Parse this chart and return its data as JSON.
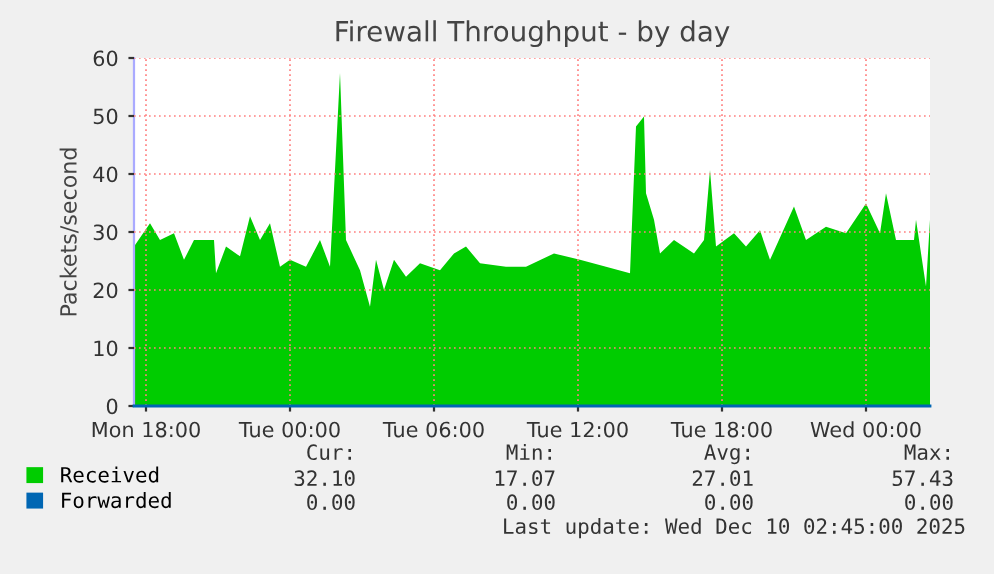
{
  "chart_data": {
    "type": "area",
    "title": "Firewall Throughput - by day",
    "ylabel": "Packets/second",
    "x": [
      "2025-12-08T17:30",
      "2025-12-08T18:10",
      "2025-12-08T18:35",
      "2025-12-08T19:10",
      "2025-12-08T19:35",
      "2025-12-08T20:00",
      "2025-12-08T20:50",
      "2025-12-08T20:55",
      "2025-12-08T21:20",
      "2025-12-08T21:55",
      "2025-12-08T22:20",
      "2025-12-08T22:45",
      "2025-12-08T23:10",
      "2025-12-08T23:35",
      "2025-12-09T00:00",
      "2025-12-09T00:40",
      "2025-12-09T01:15",
      "2025-12-09T01:40",
      "2025-12-09T02:05",
      "2025-12-09T02:20",
      "2025-12-09T02:55",
      "2025-12-09T03:20",
      "2025-12-09T03:35",
      "2025-12-09T03:55",
      "2025-12-09T04:20",
      "2025-12-09T04:50",
      "2025-12-09T05:25",
      "2025-12-09T06:15",
      "2025-12-09T06:50",
      "2025-12-09T07:20",
      "2025-12-09T07:55",
      "2025-12-09T09:00",
      "2025-12-09T09:50",
      "2025-12-09T11:00",
      "2025-12-09T12:05",
      "2025-12-09T13:10",
      "2025-12-09T14:10",
      "2025-12-09T14:25",
      "2025-12-09T14:45",
      "2025-12-09T14:50",
      "2025-12-09T15:10",
      "2025-12-09T15:25",
      "2025-12-09T16:00",
      "2025-12-09T16:50",
      "2025-12-09T17:15",
      "2025-12-09T17:30",
      "2025-12-09T17:45",
      "2025-12-09T18:30",
      "2025-12-09T19:00",
      "2025-12-09T19:35",
      "2025-12-09T20:00",
      "2025-12-09T21:00",
      "2025-12-09T21:30",
      "2025-12-09T22:20",
      "2025-12-09T23:10",
      "2025-12-10T00:00",
      "2025-12-10T00:35",
      "2025-12-10T00:50",
      "2025-12-10T01:15",
      "2025-12-10T02:00",
      "2025-12-10T02:05",
      "2025-12-10T02:30",
      "2025-12-10T02:40"
    ],
    "series": [
      {
        "name": "Received",
        "color": "#00cc00",
        "values": [
          27.5,
          31.5,
          28.6,
          29.8,
          25.2,
          28.6,
          28.6,
          22.9,
          27.5,
          25.8,
          32.7,
          28.6,
          31.5,
          24.0,
          25.2,
          24.0,
          28.6,
          24.0,
          57.4,
          28.6,
          23.4,
          17.1,
          25.2,
          20,
          25.2,
          22.3,
          24.6,
          23.4,
          26.3,
          27.5,
          24.6,
          24.0,
          24.0,
          26.3,
          25.2,
          24.0,
          22.9,
          48.2,
          49.9,
          36.7,
          32.1,
          26.3,
          28.6,
          26.3,
          28.6,
          40.7,
          27.5,
          29.8,
          27.5,
          30.3,
          25.2,
          34.4,
          28.6,
          30.9,
          29.8,
          34.9,
          29.8,
          36.7,
          28.6,
          28.6,
          32.1,
          20.6,
          32.1
        ]
      },
      {
        "name": "Forwarded",
        "type": "line",
        "color": "#0066b3",
        "x": [
          "2025-12-08T17:30",
          "2025-12-10T02:40"
        ],
        "values": [
          0,
          0
        ]
      }
    ],
    "xlim": [
      "2025-12-08T17:30",
      "2025-12-10T02:40"
    ],
    "xticks": [
      {
        "value": "2025-12-08T18:00",
        "label": "Mon 18:00"
      },
      {
        "value": "2025-12-09T00:00",
        "label": "Tue 00:00"
      },
      {
        "value": "2025-12-09T06:00",
        "label": "Tue 06:00"
      },
      {
        "value": "2025-12-09T12:00",
        "label": "Tue 12:00"
      },
      {
        "value": "2025-12-09T18:00",
        "label": "Tue 18:00"
      },
      {
        "value": "2025-12-10T00:00",
        "label": "Wed 00:00"
      }
    ],
    "ylim": [
      0,
      60
    ],
    "yticks": [
      0,
      10,
      20,
      30,
      40,
      50,
      60
    ],
    "grid": true,
    "legend": "bottom left",
    "annotations": [
      "Cur:",
      "Min:",
      "Avg:",
      "Max:",
      "32.10",
      "17.07",
      "27.01",
      "57.43",
      "0.00",
      "0.00",
      "0.00",
      "0.00",
      "Last update: Wed Dec 10 02:45:00 2025"
    ]
  }
}
